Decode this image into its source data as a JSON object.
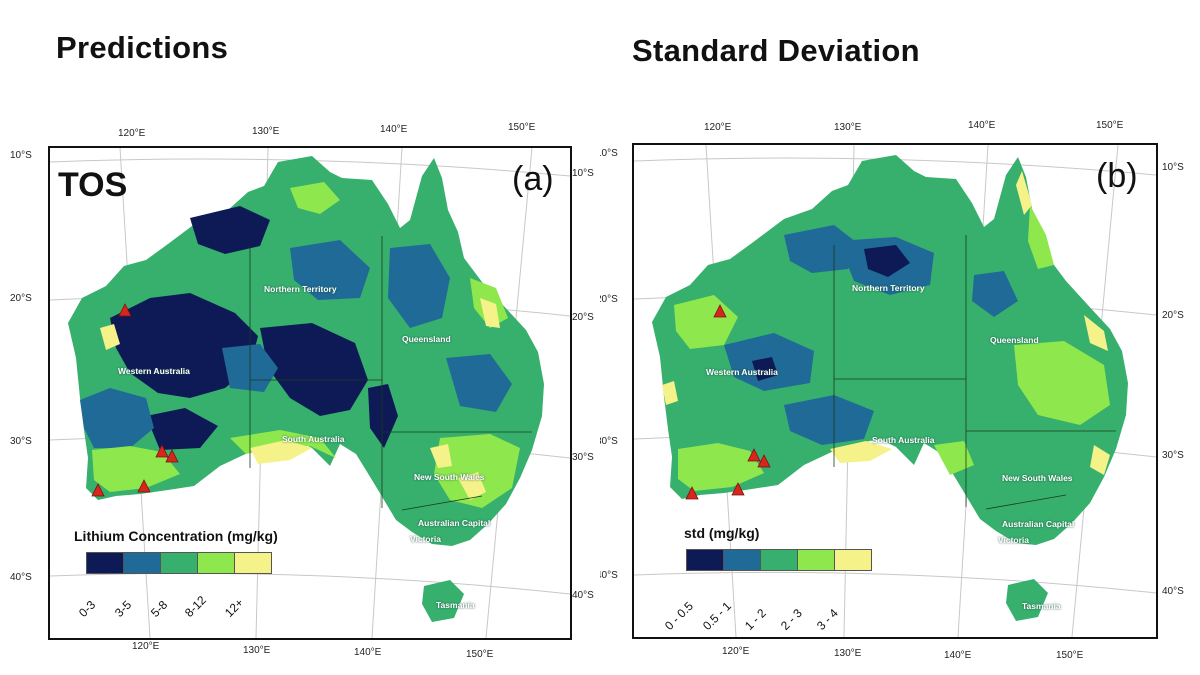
{
  "panels": [
    {
      "title": "Predictions",
      "letter": "(a)",
      "overlay": "TOS",
      "legend_title": "Lithium Concentration (mg/kg)",
      "legend_classes": [
        {
          "label": "0-3",
          "color": "#0d1a55"
        },
        {
          "label": "3-5",
          "color": "#1f6a96"
        },
        {
          "label": "5-8",
          "color": "#37b06e"
        },
        {
          "label": "8-12",
          "color": "#8ee84d"
        },
        {
          "label": "12+",
          "color": "#f5f28a"
        }
      ]
    },
    {
      "title": "Standard Deviation",
      "letter": "(b)",
      "overlay": "",
      "legend_title": "std (mg/kg)",
      "legend_classes": [
        {
          "label": "0 - 0.5",
          "color": "#0d1a55"
        },
        {
          "label": "0.5 - 1",
          "color": "#1f6a96"
        },
        {
          "label": "1 - 2",
          "color": "#37b06e"
        },
        {
          "label": "2 - 3",
          "color": "#8ee84d"
        },
        {
          "label": "3 - 4",
          "color": "#f5f28a"
        }
      ]
    }
  ],
  "ticks": {
    "top": [
      "120°E",
      "130°E",
      "140°E",
      "150°E"
    ],
    "bottom": [
      "120°E",
      "130°E",
      "140°E",
      "150°E"
    ],
    "left": [
      "10°S",
      "20°S",
      "30°S",
      "40°S"
    ],
    "right": [
      "10°S",
      "20°S",
      "30°S",
      "40°S"
    ]
  },
  "regions": [
    "Northern Territory",
    "Queensland",
    "Western Australia",
    "South Australia",
    "New South Wales",
    "Australian Capital",
    "Victoria",
    "Tasmania"
  ],
  "sites_marker": "red-triangle"
}
